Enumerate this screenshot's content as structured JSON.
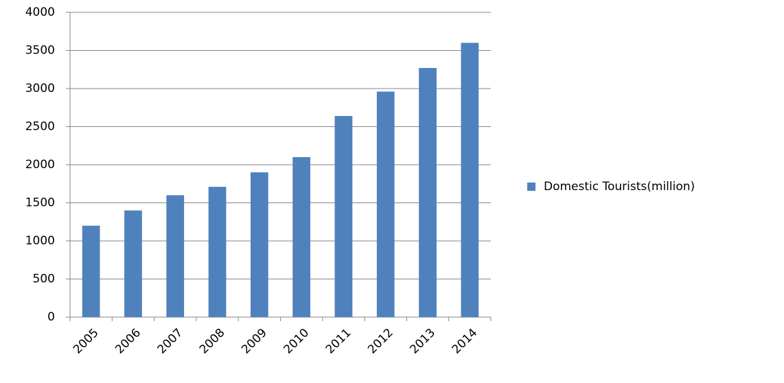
{
  "chart_data": {
    "type": "bar",
    "categories": [
      "2005",
      "2006",
      "2007",
      "2008",
      "2009",
      "2010",
      "2011",
      "2012",
      "2013",
      "2014"
    ],
    "series": [
      {
        "name": "Domestic Tourists(million)",
        "color": "#4f81bd",
        "values": [
          1200,
          1400,
          1600,
          1710,
          1900,
          2100,
          2640,
          2960,
          3270,
          3600
        ]
      }
    ],
    "ylim": [
      0,
      4000
    ],
    "yticks": [
      0,
      500,
      1000,
      1500,
      2000,
      2500,
      3000,
      3500,
      4000
    ],
    "grid": true,
    "legend": "right"
  }
}
